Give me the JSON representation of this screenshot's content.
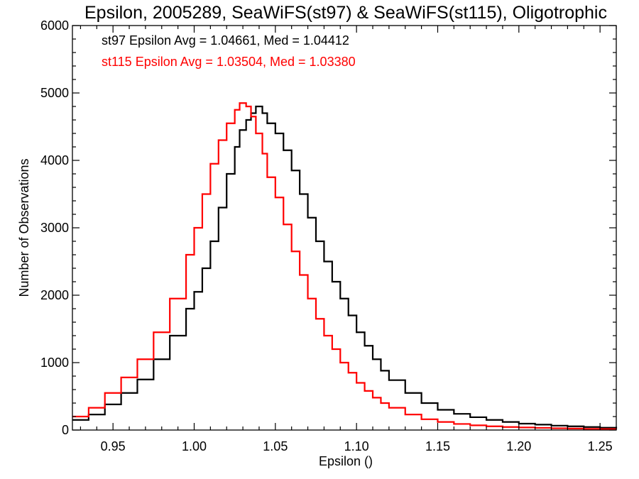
{
  "chart_data": {
    "type": "line",
    "title": "Epsilon, 2005289, SeaWiFS(st97) & SeaWiFS(st115), Oligotrophic",
    "xlabel": "Epsilon ()",
    "ylabel": "Number of Observations",
    "xlim": [
      0.925,
      1.26
    ],
    "ylim": [
      0,
      6000
    ],
    "x_ticks": [
      0.95,
      1.0,
      1.05,
      1.1,
      1.15,
      1.2,
      1.25
    ],
    "x_tick_labels": [
      "0.95",
      "1.00",
      "1.05",
      "1.10",
      "1.15",
      "1.20",
      "1.25"
    ],
    "y_ticks": [
      0,
      1000,
      2000,
      3000,
      4000,
      5000,
      6000
    ],
    "y_tick_labels": [
      "0",
      "1000",
      "2000",
      "3000",
      "4000",
      "5000",
      "6000"
    ],
    "grid": false,
    "step": "histogram",
    "annotations": [
      {
        "text": "st97 Epsilon Avg = 1.04661, Med = 1.04412",
        "color": "#000000"
      },
      {
        "text": "st115 Epsilon Avg = 1.03504, Med = 1.03380",
        "color": "#ff0000"
      }
    ],
    "series": [
      {
        "color": "#000000",
        "x": [
          0.925,
          0.935,
          0.945,
          0.955,
          0.965,
          0.975,
          0.985,
          0.995,
          1.0,
          1.005,
          1.01,
          1.015,
          1.02,
          1.025,
          1.028,
          1.032,
          1.035,
          1.038,
          1.042,
          1.045,
          1.05,
          1.055,
          1.06,
          1.065,
          1.07,
          1.075,
          1.08,
          1.085,
          1.09,
          1.095,
          1.1,
          1.105,
          1.11,
          1.115,
          1.12,
          1.13,
          1.14,
          1.15,
          1.16,
          1.17,
          1.18,
          1.19,
          1.2,
          1.21,
          1.22,
          1.23,
          1.24,
          1.25,
          1.26
        ],
        "y": [
          150,
          230,
          380,
          550,
          750,
          1050,
          1400,
          1800,
          2050,
          2400,
          2800,
          3300,
          3800,
          4200,
          4450,
          4600,
          4700,
          4800,
          4700,
          4550,
          4400,
          4150,
          3850,
          3500,
          3150,
          2800,
          2500,
          2200,
          1950,
          1700,
          1450,
          1250,
          1050,
          880,
          740,
          550,
          400,
          300,
          240,
          190,
          150,
          120,
          95,
          80,
          65,
          55,
          45,
          35,
          30
        ]
      },
      {
        "color": "#ff0000",
        "x": [
          0.925,
          0.935,
          0.945,
          0.955,
          0.965,
          0.975,
          0.985,
          0.995,
          1.0,
          1.005,
          1.01,
          1.015,
          1.02,
          1.025,
          1.028,
          1.032,
          1.035,
          1.038,
          1.042,
          1.045,
          1.05,
          1.055,
          1.06,
          1.065,
          1.07,
          1.075,
          1.08,
          1.085,
          1.09,
          1.095,
          1.1,
          1.105,
          1.11,
          1.115,
          1.12,
          1.13,
          1.14,
          1.15,
          1.16,
          1.17,
          1.18,
          1.19,
          1.2,
          1.21,
          1.22,
          1.23,
          1.24,
          1.25,
          1.26
        ],
        "y": [
          200,
          330,
          550,
          780,
          1050,
          1450,
          1950,
          2600,
          3000,
          3500,
          3950,
          4300,
          4550,
          4750,
          4850,
          4800,
          4650,
          4400,
          4100,
          3750,
          3450,
          3050,
          2650,
          2300,
          1950,
          1650,
          1400,
          1200,
          1000,
          850,
          700,
          580,
          480,
          400,
          330,
          230,
          160,
          120,
          90,
          70,
          55,
          45,
          38,
          32,
          26,
          22,
          18,
          15,
          12
        ]
      }
    ]
  }
}
